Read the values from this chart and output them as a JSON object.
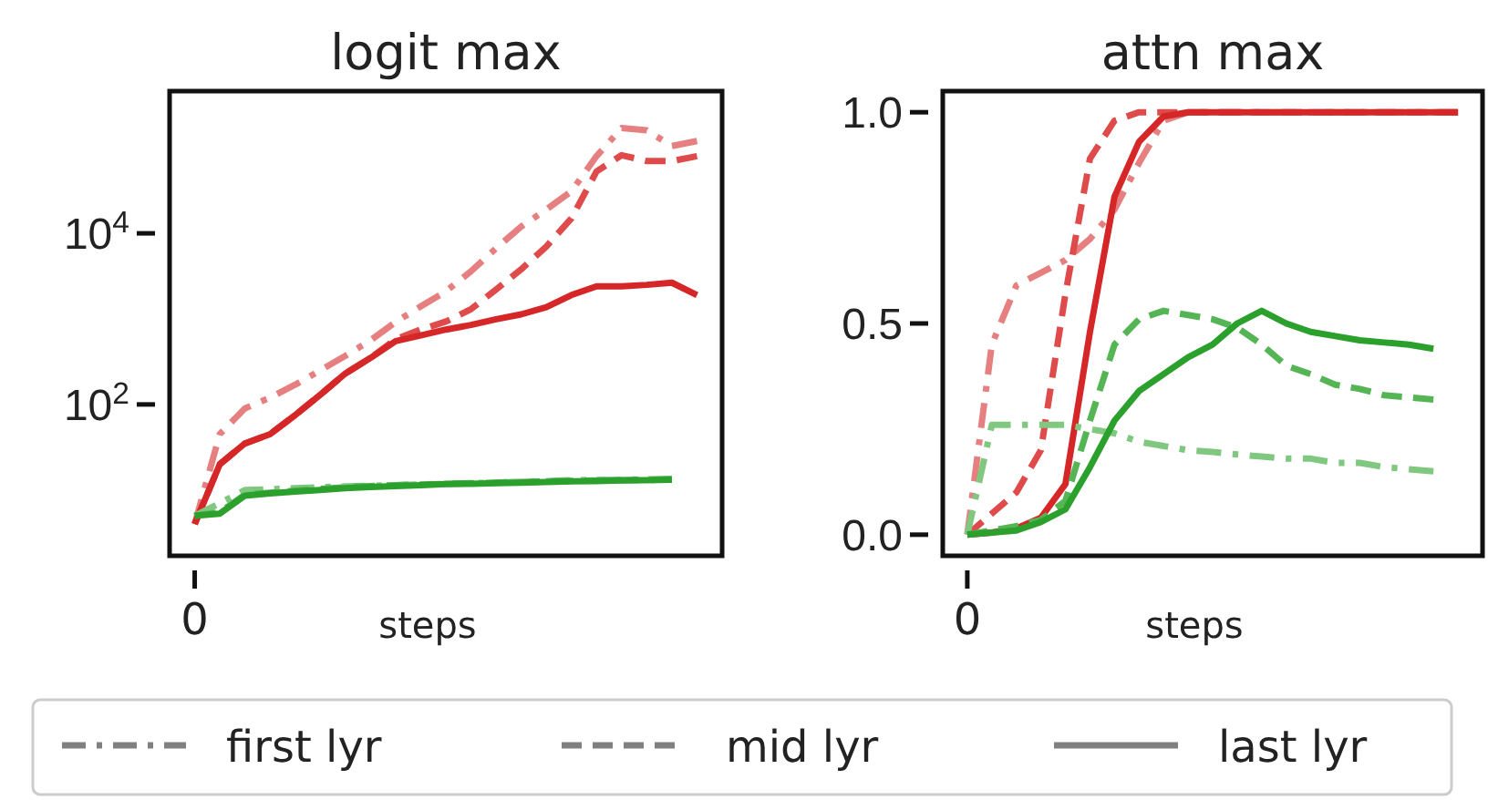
{
  "chart_data": [
    {
      "type": "line",
      "title": "logit max",
      "xlabel": "steps",
      "log": true,
      "annotations": [
        "0",
        "first lyr",
        "mid lyr",
        "last lyr"
      ],
      "categories": [
        null,
        null,
        null,
        null,
        null,
        null,
        null,
        null,
        null,
        null,
        null,
        null,
        null,
        null,
        null,
        null,
        null,
        null,
        null,
        null,
        null
      ],
      "ylim": [
        1.7,
        460000
      ],
      "yticks": [
        {
          "value": 100,
          "label": "10$^{2}$"
        },
        {
          "value": 10000,
          "label": "10$^{4}$"
        }
      ],
      "grid": false,
      "marker": "none",
      "series": [
        {
          "color": "#e67f80",
          "line_style": "dotted",
          "values": [
            4,
            45,
            90,
            120,
            170,
            250,
            370,
            560,
            920,
            1400,
            2100,
            3600,
            6700,
            12000,
            19000,
            31000,
            80000,
            170000,
            160000,
            105000,
            120000
          ]
        },
        {
          "color": "#df4a4b",
          "line_style": "dashed",
          "values": [
            4,
            20,
            35,
            45,
            75,
            130,
            230,
            350,
            580,
            750,
            930,
            1300,
            2200,
            3800,
            7000,
            15000,
            53000,
            82000,
            70000,
            70000,
            80000
          ]
        },
        {
          "color": "#d62728",
          "line_style": "solid",
          "values": [
            4,
            20,
            35,
            45,
            75,
            130,
            230,
            350,
            550,
            640,
            750,
            850,
            990,
            1130,
            1370,
            1900,
            2400,
            2400,
            2500,
            2650,
            1900
          ]
        },
        {
          "color": "#80c880",
          "line_style": "dotted",
          "values": [
            5,
            7,
            10,
            10.2,
            10.5,
            10.8,
            11,
            11.2,
            11.4,
            11.6,
            11.8,
            12,
            12.2,
            12.5,
            12.7,
            13,
            13.1,
            13.2,
            13.3,
            13.5,
            null
          ]
        },
        {
          "color": "#55b555",
          "line_style": "dashed",
          "values": [
            5,
            5.5,
            8.8,
            9.3,
            9.8,
            10.3,
            10.8,
            11.1,
            11.4,
            11.6,
            11.8,
            12,
            12.2,
            12.4,
            12.6,
            12.8,
            12.9,
            13,
            13.1,
            13.3,
            null
          ]
        },
        {
          "color": "#2ca02c",
          "line_style": "solid",
          "values": [
            5,
            5.3,
            8.6,
            9.1,
            9.6,
            10,
            10.5,
            10.8,
            11.1,
            11.4,
            11.7,
            11.8,
            12,
            12.2,
            12.4,
            12.6,
            12.7,
            12.9,
            13,
            13.2,
            null
          ]
        }
      ]
    },
    {
      "type": "line",
      "title": "attn max",
      "xlabel": "steps",
      "annotations": [
        "0"
      ],
      "categories": [
        null,
        null,
        null,
        null,
        null,
        null,
        null,
        null,
        null,
        null,
        null,
        null,
        null,
        null,
        null,
        null,
        null,
        null,
        null,
        null,
        null
      ],
      "ylim": [
        -0.05,
        1.05
      ],
      "yticks": [
        {
          "value": 0,
          "label": "0.0"
        },
        {
          "value": 0.5,
          "label": "0.5"
        },
        {
          "value": 1,
          "label": "1.0"
        }
      ],
      "grid": false,
      "marker": "none",
      "series": [
        {
          "color": "#e67f80",
          "line_style": "dotted",
          "values": [
            0,
            0.45,
            0.59,
            0.62,
            0.65,
            0.7,
            0.77,
            0.88,
            0.98,
            1,
            1,
            1,
            1,
            1,
            1,
            1,
            1,
            1,
            1,
            1,
            1
          ]
        },
        {
          "color": "#df4a4b",
          "line_style": "dashed",
          "values": [
            0,
            0.05,
            0.1,
            0.2,
            0.57,
            0.89,
            0.98,
            1,
            1,
            1,
            1,
            1,
            1,
            1,
            1,
            1,
            1,
            1,
            1,
            1,
            1
          ]
        },
        {
          "color": "#d62728",
          "line_style": "solid",
          "values": [
            0,
            0.005,
            0.015,
            0.04,
            0.12,
            0.48,
            0.8,
            0.93,
            0.99,
            1,
            1,
            1,
            1,
            1,
            1,
            1,
            1,
            1,
            1,
            1,
            1
          ]
        },
        {
          "color": "#80c880",
          "line_style": "dotted",
          "values": [
            0,
            0.26,
            0.26,
            0.26,
            0.26,
            0.25,
            0.24,
            0.22,
            0.21,
            0.2,
            0.196,
            0.19,
            0.185,
            0.18,
            0.18,
            0.17,
            0.17,
            0.16,
            0.155,
            0.15,
            null
          ]
        },
        {
          "color": "#55b555",
          "line_style": "dashed",
          "values": [
            0,
            0.01,
            0.02,
            0.035,
            0.08,
            0.27,
            0.45,
            0.51,
            0.53,
            0.52,
            0.51,
            0.49,
            0.45,
            0.4,
            0.38,
            0.355,
            0.345,
            0.33,
            0.325,
            0.32,
            null
          ]
        },
        {
          "color": "#2ca02c",
          "line_style": "solid",
          "values": [
            0,
            0.005,
            0.01,
            0.03,
            0.06,
            0.16,
            0.27,
            0.34,
            0.38,
            0.42,
            0.45,
            0.5,
            0.53,
            0.5,
            0.48,
            0.47,
            0.46,
            0.455,
            0.45,
            0.44,
            null
          ]
        }
      ]
    }
  ]
}
